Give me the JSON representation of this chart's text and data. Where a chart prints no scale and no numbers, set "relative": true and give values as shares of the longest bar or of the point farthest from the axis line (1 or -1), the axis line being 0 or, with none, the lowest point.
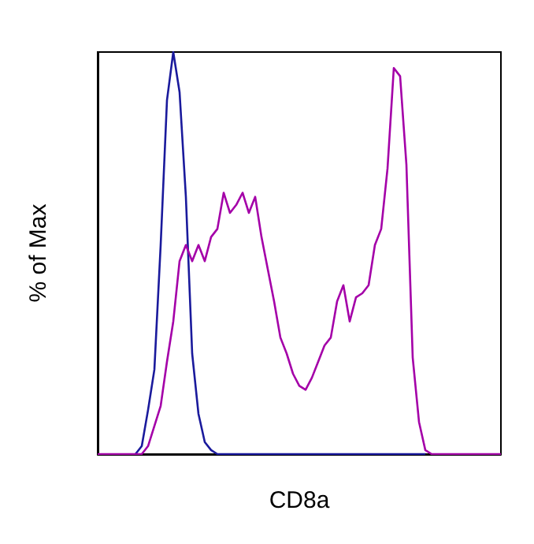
{
  "chart_data": {
    "type": "line",
    "relative": true,
    "xlabel": "CD8a",
    "ylabel": "% of Max",
    "grid": false,
    "marker": "none",
    "line_style": "solid",
    "categories": [
      null,
      null,
      null,
      null,
      null,
      null,
      null,
      null,
      null,
      null,
      null,
      null,
      null,
      null,
      null,
      null,
      null,
      null,
      null,
      null,
      null,
      null,
      null,
      null,
      null,
      null,
      null,
      null,
      null,
      null,
      null,
      null,
      null,
      null,
      null,
      null,
      null,
      null,
      null,
      null,
      null,
      null,
      null,
      null,
      null,
      null,
      null,
      null,
      null,
      null,
      null,
      null,
      null,
      null,
      null,
      null,
      null,
      null,
      null,
      null,
      null,
      null,
      null,
      null,
      null
    ],
    "series": [
      {
        "color": "#1a1a9c",
        "values": [
          null,
          null,
          null,
          null,
          null,
          null,
          0,
          0.02,
          0.11,
          0.21,
          0.52,
          0.88,
          1,
          0.9,
          0.64,
          0.25,
          0.1,
          0.03,
          0.01,
          0,
          0,
          0,
          0,
          0,
          0,
          0,
          0,
          0,
          0,
          0,
          0,
          0,
          0,
          0,
          0,
          0,
          0,
          0,
          0,
          0,
          0,
          0,
          0,
          0,
          0,
          0,
          0,
          0,
          0,
          0,
          0,
          0,
          0,
          null,
          null,
          null,
          null,
          null,
          null,
          null,
          null,
          null,
          null,
          null,
          null
        ]
      },
      {
        "color": "#a400a8",
        "values": [
          0,
          0,
          0,
          0,
          0,
          0,
          0,
          0,
          0.02,
          0.07,
          0.12,
          0.23,
          0.33,
          0.48,
          0.52,
          0.48,
          0.52,
          0.48,
          0.54,
          0.56,
          0.65,
          0.6,
          0.62,
          0.65,
          0.6,
          0.64,
          0.54,
          0.46,
          0.38,
          0.29,
          0.25,
          0.2,
          0.17,
          0.16,
          0.19,
          0.23,
          0.27,
          0.29,
          0.38,
          0.42,
          0.33,
          0.39,
          0.4,
          0.42,
          0.52,
          0.56,
          0.71,
          0.96,
          0.94,
          0.72,
          0.24,
          0.08,
          0.01,
          0,
          0,
          0,
          0,
          0,
          0,
          0,
          0,
          0,
          0,
          0,
          0
        ]
      }
    ]
  }
}
